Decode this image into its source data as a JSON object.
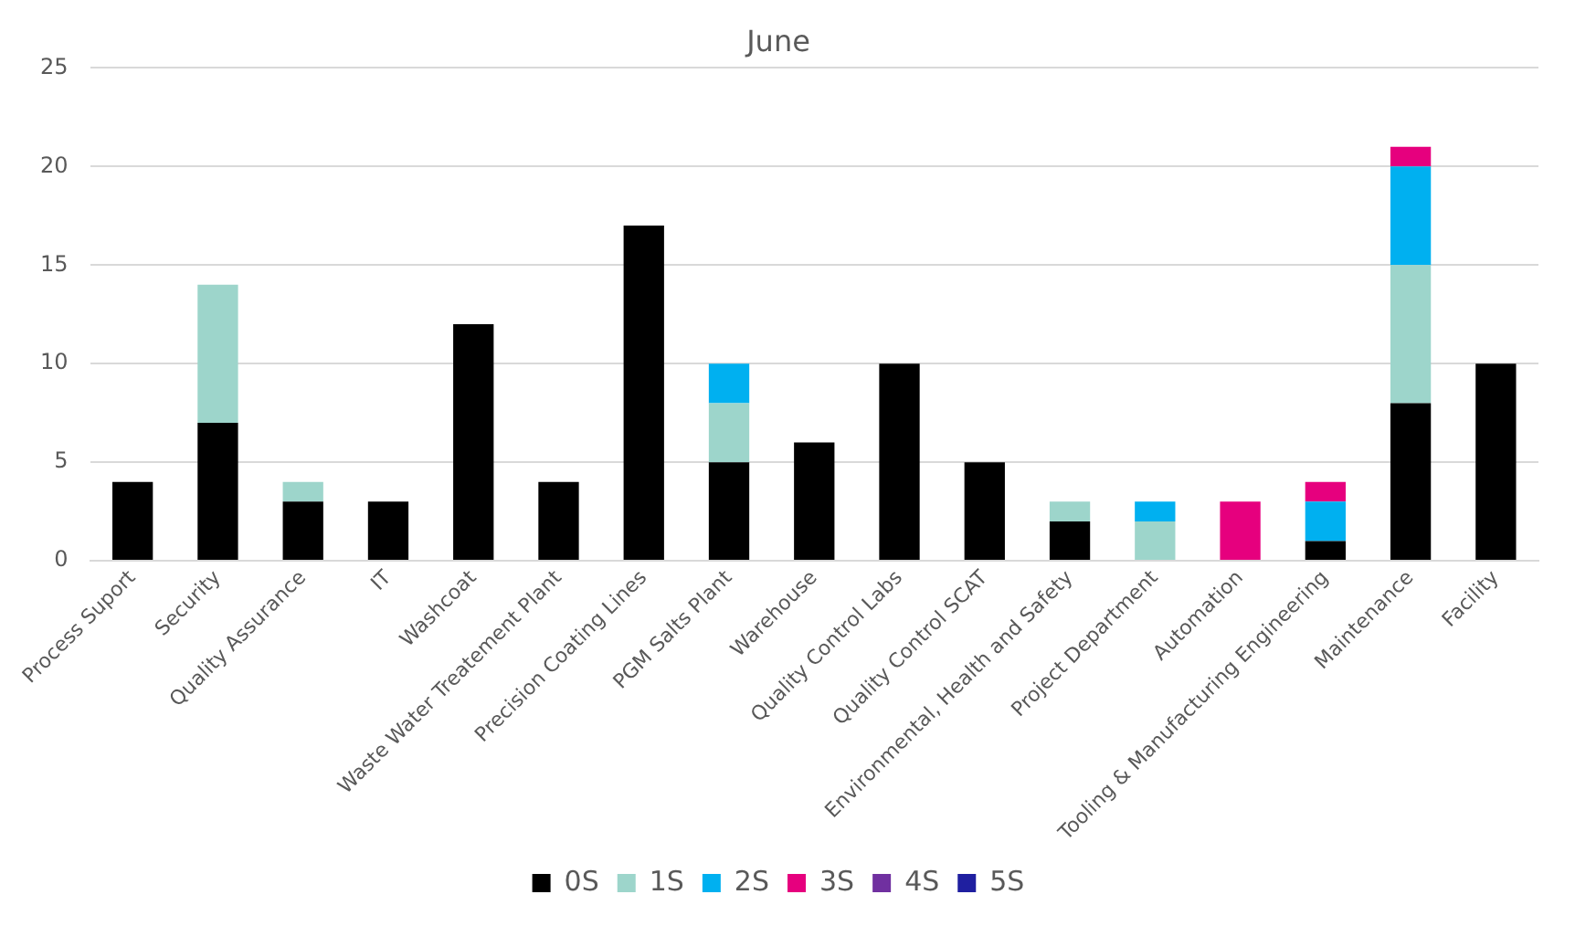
{
  "chart_data": {
    "type": "bar",
    "title": "June",
    "stacked": true,
    "grid": "y",
    "legend": "bottom",
    "categories": [
      "Process Suport",
      "Security",
      "Quality Assurance",
      "IT",
      "Washcoat",
      "Waste Water Treatement Plant",
      "Precision Coating Lines",
      "PGM Salts Plant",
      "Warehouse",
      "Quality Control Labs",
      "Quality Control SCAT",
      "Environmental, Health and Safety",
      "Project Department",
      "Automation",
      "Tooling & Manufacturing Engineering",
      "Maintenance",
      "Facility"
    ],
    "ylim": [
      0,
      25
    ],
    "yticks": [
      0,
      5,
      10,
      15,
      20,
      25
    ],
    "series": [
      {
        "name": "0S",
        "color": "#000000",
        "values": [
          4,
          7,
          3,
          3,
          12,
          4,
          17,
          5,
          6,
          10,
          5,
          2,
          0,
          0,
          1,
          8,
          10
        ]
      },
      {
        "name": "1S",
        "color": "#9dd5cb",
        "values": [
          0,
          7,
          1,
          0,
          0,
          0,
          0,
          3,
          0,
          0,
          0,
          1,
          2,
          0,
          0,
          7,
          0
        ]
      },
      {
        "name": "2S",
        "color": "#00b0f0",
        "values": [
          0,
          0,
          0,
          0,
          0,
          0,
          0,
          2,
          0,
          0,
          0,
          0,
          1,
          0,
          2,
          5,
          0
        ]
      },
      {
        "name": "3S",
        "color": "#e6007e",
        "values": [
          0,
          0,
          0,
          0,
          0,
          0,
          0,
          0,
          0,
          0,
          0,
          0,
          0,
          3,
          1,
          1,
          0
        ]
      },
      {
        "name": "4S",
        "color": "#7030a0",
        "values": [
          0,
          0,
          0,
          0,
          0,
          0,
          0,
          0,
          0,
          0,
          0,
          0,
          0,
          0,
          0,
          0,
          0
        ]
      },
      {
        "name": "5S",
        "color": "#1f1fa0",
        "values": [
          0,
          0,
          0,
          0,
          0,
          0,
          0,
          0,
          0,
          0,
          0,
          0,
          0,
          0,
          0,
          0,
          0
        ]
      }
    ]
  }
}
